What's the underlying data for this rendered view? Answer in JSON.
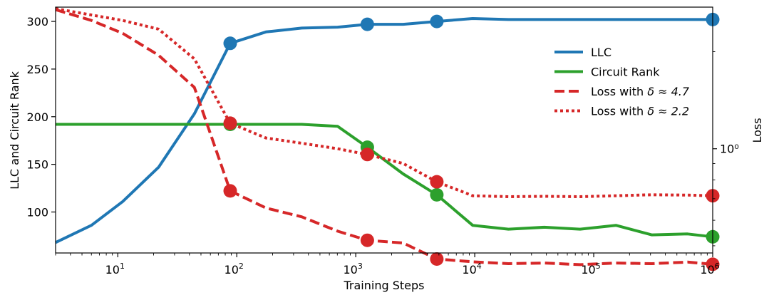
{
  "chart_data": {
    "type": "line",
    "xscale": "log",
    "xlim": [
      3,
      1000000
    ],
    "xlabel": "Training Steps",
    "ylabel_left": "LLC and Circuit Rank",
    "ylabel_right": "Loss",
    "ylim_left": [
      57,
      315
    ],
    "yticks_left": [
      100,
      150,
      200,
      250,
      300
    ],
    "ytick_labels_left": [
      "100",
      "150",
      "200",
      "250",
      "300"
    ],
    "right_scale": "log",
    "ylim_right": [
      0.475,
      2.75
    ],
    "yticks_right": [
      1.0
    ],
    "ytick_labels_right": [
      "10⁰"
    ],
    "xticks": [
      10,
      100,
      1000,
      10000,
      100000,
      1000000
    ],
    "xtick_bases": [
      "10",
      "10",
      "10",
      "10",
      "10",
      "10"
    ],
    "xtick_exponents": [
      "1",
      "2",
      "3",
      "4",
      "5",
      "6"
    ],
    "legend_position": "upper-right",
    "series": [
      {
        "name": "LLC",
        "legend_label": "LLC",
        "axis": "left",
        "color": "#1f77b4",
        "style": "solid",
        "x": [
          3,
          6,
          11,
          22,
          44,
          88,
          176,
          352,
          704,
          1250,
          2500,
          4800,
          9600,
          19200,
          38400,
          76800,
          153600,
          307200,
          614400,
          1000000
        ],
        "y": [
          68,
          86,
          111,
          147,
          203,
          277,
          289,
          293,
          294,
          297,
          297,
          300,
          303,
          302,
          302,
          302,
          302,
          302,
          302,
          302
        ],
        "markers_x": [
          88,
          1250,
          4800,
          1000000
        ],
        "markers_y": [
          277,
          297,
          300,
          302
        ]
      },
      {
        "name": "Circuit Rank",
        "legend_label": "Circuit Rank",
        "axis": "left",
        "color": "#2ca02c",
        "style": "solid",
        "x": [
          3,
          6,
          11,
          22,
          44,
          88,
          176,
          352,
          704,
          1250,
          2500,
          4800,
          9600,
          19200,
          38400,
          76800,
          153600,
          307200,
          614400,
          1000000
        ],
        "y": [
          192,
          192,
          192,
          192,
          192,
          192,
          192,
          192,
          190,
          168,
          140,
          118,
          86,
          82,
          84,
          82,
          86,
          76,
          77,
          74
        ],
        "markers_x": [
          88,
          1250,
          4800,
          1000000
        ],
        "markers_y": [
          192,
          168,
          118,
          74
        ]
      },
      {
        "name": "Loss with δ ≈ 4.7",
        "legend_prefix": "Loss with ",
        "legend_math": "δ ≈ 4.7",
        "axis": "right",
        "color": "#d62728",
        "style": "dashed",
        "x": [
          3,
          6,
          11,
          22,
          44,
          88,
          176,
          352,
          704,
          1250,
          2500,
          4800,
          9600,
          19200,
          38400,
          76800,
          153600,
          307200,
          614400,
          1000000
        ],
        "y": [
          2.7,
          2.5,
          2.28,
          1.95,
          1.55,
          0.74,
          0.655,
          0.615,
          0.555,
          0.52,
          0.51,
          0.455,
          0.446,
          0.44,
          0.442,
          0.437,
          0.442,
          0.44,
          0.445,
          0.438
        ],
        "markers_x": [
          88,
          1250,
          4800,
          1000000
        ],
        "markers_y": [
          0.74,
          0.52,
          0.455,
          0.438
        ]
      },
      {
        "name": "Loss with δ ≈ 2.2",
        "legend_prefix": "Loss with ",
        "legend_math": "δ ≈ 2.2",
        "axis": "right",
        "color": "#d62728",
        "style": "dotted",
        "x": [
          3,
          6,
          11,
          22,
          44,
          88,
          176,
          352,
          704,
          1250,
          2500,
          4800,
          9600,
          19200,
          38400,
          76800,
          153600,
          307200,
          614400,
          1000000
        ],
        "y": [
          2.72,
          2.6,
          2.5,
          2.35,
          1.9,
          1.2,
          1.08,
          1.04,
          1.0,
          0.96,
          0.9,
          0.79,
          0.715,
          0.71,
          0.712,
          0.71,
          0.715,
          0.72,
          0.718,
          0.715
        ],
        "markers_x": [
          88,
          1250,
          4800,
          1000000
        ],
        "markers_y": [
          1.2,
          0.96,
          0.79,
          0.715
        ]
      }
    ]
  }
}
